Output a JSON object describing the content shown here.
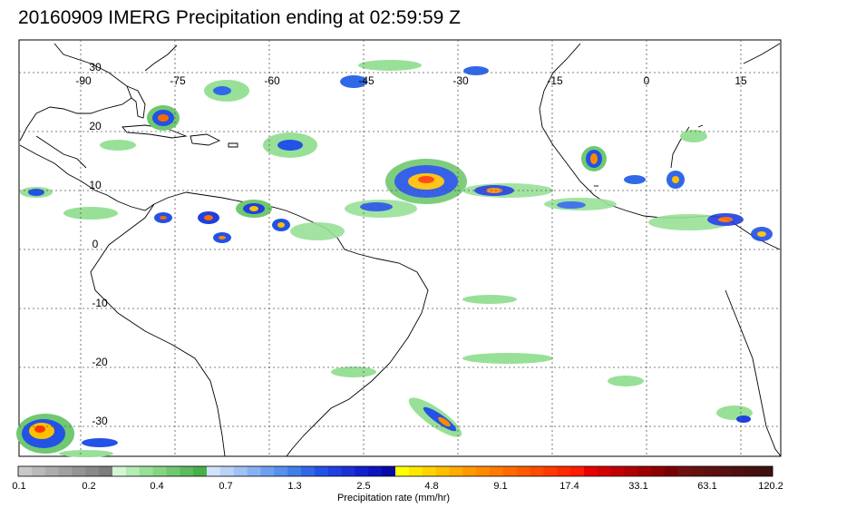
{
  "title": "20160909 IMERG Precipitation ending at 02:59:59 Z",
  "longitude_labels": [
    "-90",
    "-75",
    "-60",
    "-45",
    "-30",
    "-15",
    "0",
    "15"
  ],
  "latitude_labels": [
    "30",
    "20",
    "10",
    "0",
    "-10",
    "-20",
    "-30"
  ],
  "colorbar": {
    "title": "Precipitation rate (mm/hr)",
    "tick_labels": [
      "0.1",
      "0.2",
      "0.4",
      "0.7",
      "1.3",
      "2.5",
      "4.8",
      "9.1",
      "17.4",
      "33.1",
      "63.1",
      "120.2"
    ],
    "colors": [
      "#c8c8c8",
      "#bababa",
      "#acacac",
      "#a0a0a0",
      "#949494",
      "#888888",
      "#7c7c7c",
      "#d6f5d6",
      "#b4ecb4",
      "#98e098",
      "#84d484",
      "#70c870",
      "#5cbc5c",
      "#48b048",
      "#d2e2fb",
      "#b9d2f8",
      "#a0c1f5",
      "#87b1f2",
      "#6ea0ef",
      "#5690ec",
      "#3f7fe9",
      "#3068e8",
      "#2252e6",
      "#1f3fe0",
      "#1a2fd8",
      "#1320cc",
      "#0c14bd",
      "#0709a8",
      "#ffff00",
      "#ffe800",
      "#ffd400",
      "#ffc000",
      "#ffac00",
      "#ff9900",
      "#ff8a00",
      "#ff7a00",
      "#ff6a00",
      "#ff5a00",
      "#ff4a00",
      "#ff3a00",
      "#ff2a00",
      "#ff1a00",
      "#e60000",
      "#d40000",
      "#c20000",
      "#b00000",
      "#9e0000",
      "#8c0000",
      "#7a0000",
      "#6e1010",
      "#661010",
      "#5e1010",
      "#561010",
      "#4e1010",
      "#461010",
      "#3e1010"
    ]
  },
  "map_colors": {
    "coastline": "#000000",
    "grid": "#555555"
  }
}
